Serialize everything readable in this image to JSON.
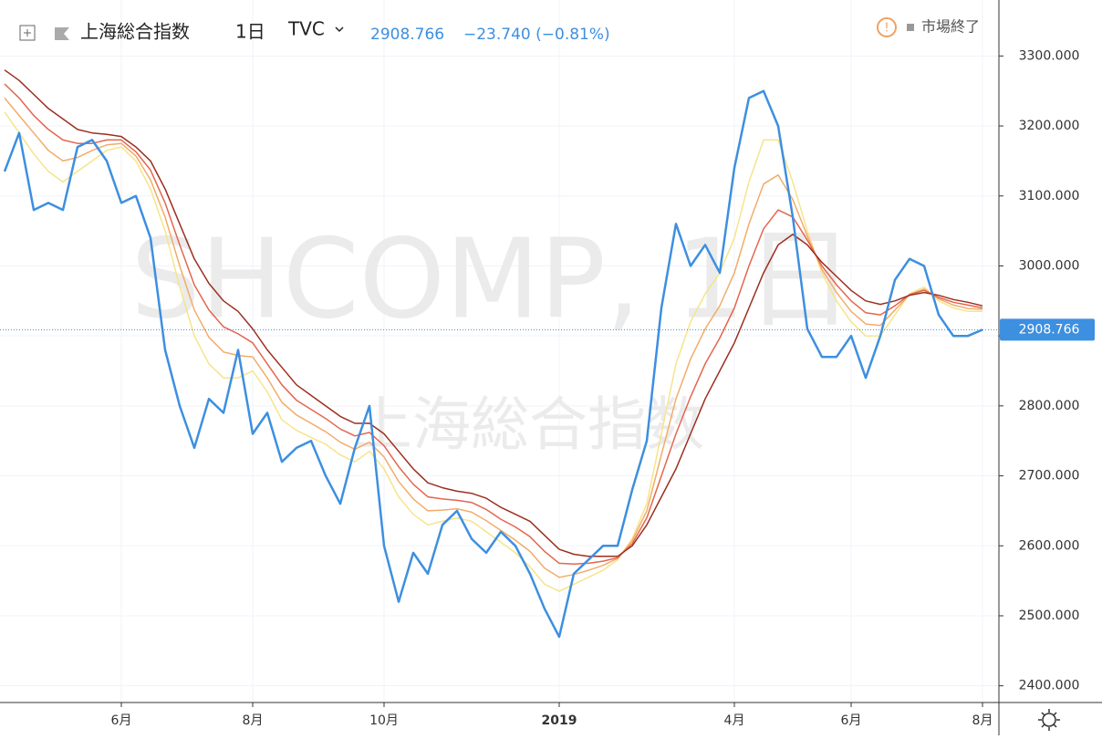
{
  "chart_data": {
    "type": "line",
    "title": "上海総合指数",
    "interval": "1日",
    "source": "TVC",
    "change": "−23.740 (−0.81%)",
    "status": "市場終了",
    "watermark": "SHCOMP, 1日",
    "categories": [
      null,
      null,
      null,
      null,
      null,
      null,
      null,
      null,
      "6月",
      null,
      null,
      null,
      null,
      null,
      null,
      null,
      null,
      "8月",
      null,
      null,
      null,
      null,
      null,
      null,
      null,
      null,
      "10月",
      null,
      null,
      null,
      null,
      null,
      null,
      null,
      null,
      null,
      null,
      null,
      "2019",
      null,
      null,
      null,
      null,
      null,
      null,
      null,
      null,
      null,
      null,
      null,
      "4月",
      null,
      null,
      null,
      null,
      null,
      null,
      null,
      "6月",
      null,
      null,
      null,
      null,
      null,
      null,
      null,
      null,
      "8月"
    ],
    "ylim": [
      2380,
      3380
    ],
    "yticks": [
      {
        "value": 2400,
        "label": "2400.000"
      },
      {
        "value": 2500,
        "label": "2500.000"
      },
      {
        "value": 2600,
        "label": "2600.000"
      },
      {
        "value": 2700,
        "label": "2700.000"
      },
      {
        "value": 2800,
        "label": "2800.000"
      },
      {
        "value": 2900,
        "label": "2900.000"
      },
      {
        "value": 3000,
        "label": "3000.000"
      },
      {
        "value": 3100,
        "label": "3100.000"
      },
      {
        "value": 3200,
        "label": "3200.000"
      },
      {
        "value": 3300,
        "label": "3300.000"
      }
    ],
    "grid": true,
    "series": [
      {
        "color": "#f6e48c",
        "values": [
          3220,
          3190,
          3160,
          3135,
          3120,
          3135,
          3150,
          3165,
          3170,
          3150,
          3110,
          3050,
          2970,
          2900,
          2860,
          2840,
          2840,
          2850,
          2820,
          2780,
          2765,
          2755,
          2745,
          2730,
          2720,
          2735,
          2710,
          2670,
          2645,
          2630,
          2635,
          2640,
          2635,
          2620,
          2605,
          2590,
          2570,
          2545,
          2535,
          2545,
          2555,
          2565,
          2580,
          2610,
          2660,
          2760,
          2860,
          2920,
          2960,
          2990,
          3040,
          3120,
          3180,
          3180,
          3120,
          3050,
          2990,
          2950,
          2920,
          2900,
          2900,
          2930,
          2960,
          2970,
          2950,
          2940,
          2935,
          2935
        ]
      },
      {
        "color": "#f2ac6a",
        "values": [
          3240,
          3215,
          3190,
          3165,
          3150,
          3155,
          3165,
          3173,
          3175,
          3157,
          3123,
          3070,
          3000,
          2937,
          2898,
          2877,
          2872,
          2870,
          2840,
          2805,
          2787,
          2775,
          2763,
          2748,
          2738,
          2748,
          2727,
          2692,
          2667,
          2650,
          2651,
          2653,
          2648,
          2636,
          2622,
          2608,
          2592,
          2568,
          2555,
          2559,
          2565,
          2572,
          2582,
          2607,
          2650,
          2730,
          2810,
          2867,
          2910,
          2943,
          2990,
          3060,
          3117,
          3130,
          3095,
          3043,
          2995,
          2962,
          2935,
          2917,
          2915,
          2937,
          2959,
          2967,
          2953,
          2944,
          2939,
          2938
        ]
      },
      {
        "color": "#e4664e",
        "values": [
          3260,
          3240,
          3215,
          3195,
          3180,
          3175,
          3175,
          3180,
          3180,
          3163,
          3137,
          3090,
          3030,
          2973,
          2937,
          2913,
          2903,
          2890,
          2860,
          2830,
          2808,
          2795,
          2782,
          2767,
          2757,
          2762,
          2743,
          2713,
          2688,
          2670,
          2667,
          2665,
          2662,
          2652,
          2638,
          2627,
          2613,
          2592,
          2575,
          2574,
          2575,
          2578,
          2583,
          2603,
          2640,
          2700,
          2760,
          2813,
          2860,
          2897,
          2940,
          3000,
          3053,
          3080,
          3070,
          3037,
          3000,
          2973,
          2950,
          2933,
          2930,
          2943,
          2959,
          2965,
          2955,
          2948,
          2944,
          2940
        ]
      },
      {
        "color": "#9c2f1f",
        "values": [
          3280,
          3265,
          3245,
          3225,
          3210,
          3195,
          3190,
          3188,
          3185,
          3170,
          3150,
          3110,
          3060,
          3010,
          2975,
          2950,
          2935,
          2910,
          2880,
          2855,
          2830,
          2815,
          2800,
          2785,
          2775,
          2775,
          2760,
          2735,
          2710,
          2690,
          2683,
          2678,
          2675,
          2668,
          2655,
          2645,
          2635,
          2615,
          2595,
          2588,
          2585,
          2585,
          2585,
          2600,
          2630,
          2670,
          2710,
          2760,
          2810,
          2850,
          2890,
          2940,
          2990,
          3030,
          3045,
          3030,
          3005,
          2985,
          2965,
          2950,
          2945,
          2950,
          2958,
          2962,
          2958,
          2952,
          2948,
          2943
        ]
      },
      {
        "color": "#3d8fe0",
        "values": [
          3135,
          3190,
          3080,
          3090,
          3080,
          3170,
          3180,
          3150,
          3090,
          3100,
          3040,
          2880,
          2800,
          2740,
          2810,
          2790,
          2880,
          2760,
          2790,
          2720,
          2740,
          2750,
          2700,
          2660,
          2740,
          2800,
          2600,
          2520,
          2590,
          2560,
          2630,
          2650,
          2610,
          2590,
          2620,
          2600,
          2560,
          2510,
          2470,
          2560,
          2580,
          2600,
          2600,
          2680,
          2750,
          2940,
          3060,
          3000,
          3030,
          2990,
          3140,
          3240,
          3250,
          3200,
          3070,
          2910,
          2870,
          2870,
          2900,
          2840,
          2900,
          2980,
          3010,
          3000,
          2930,
          2900,
          2900,
          2908.766
        ]
      }
    ]
  }
}
